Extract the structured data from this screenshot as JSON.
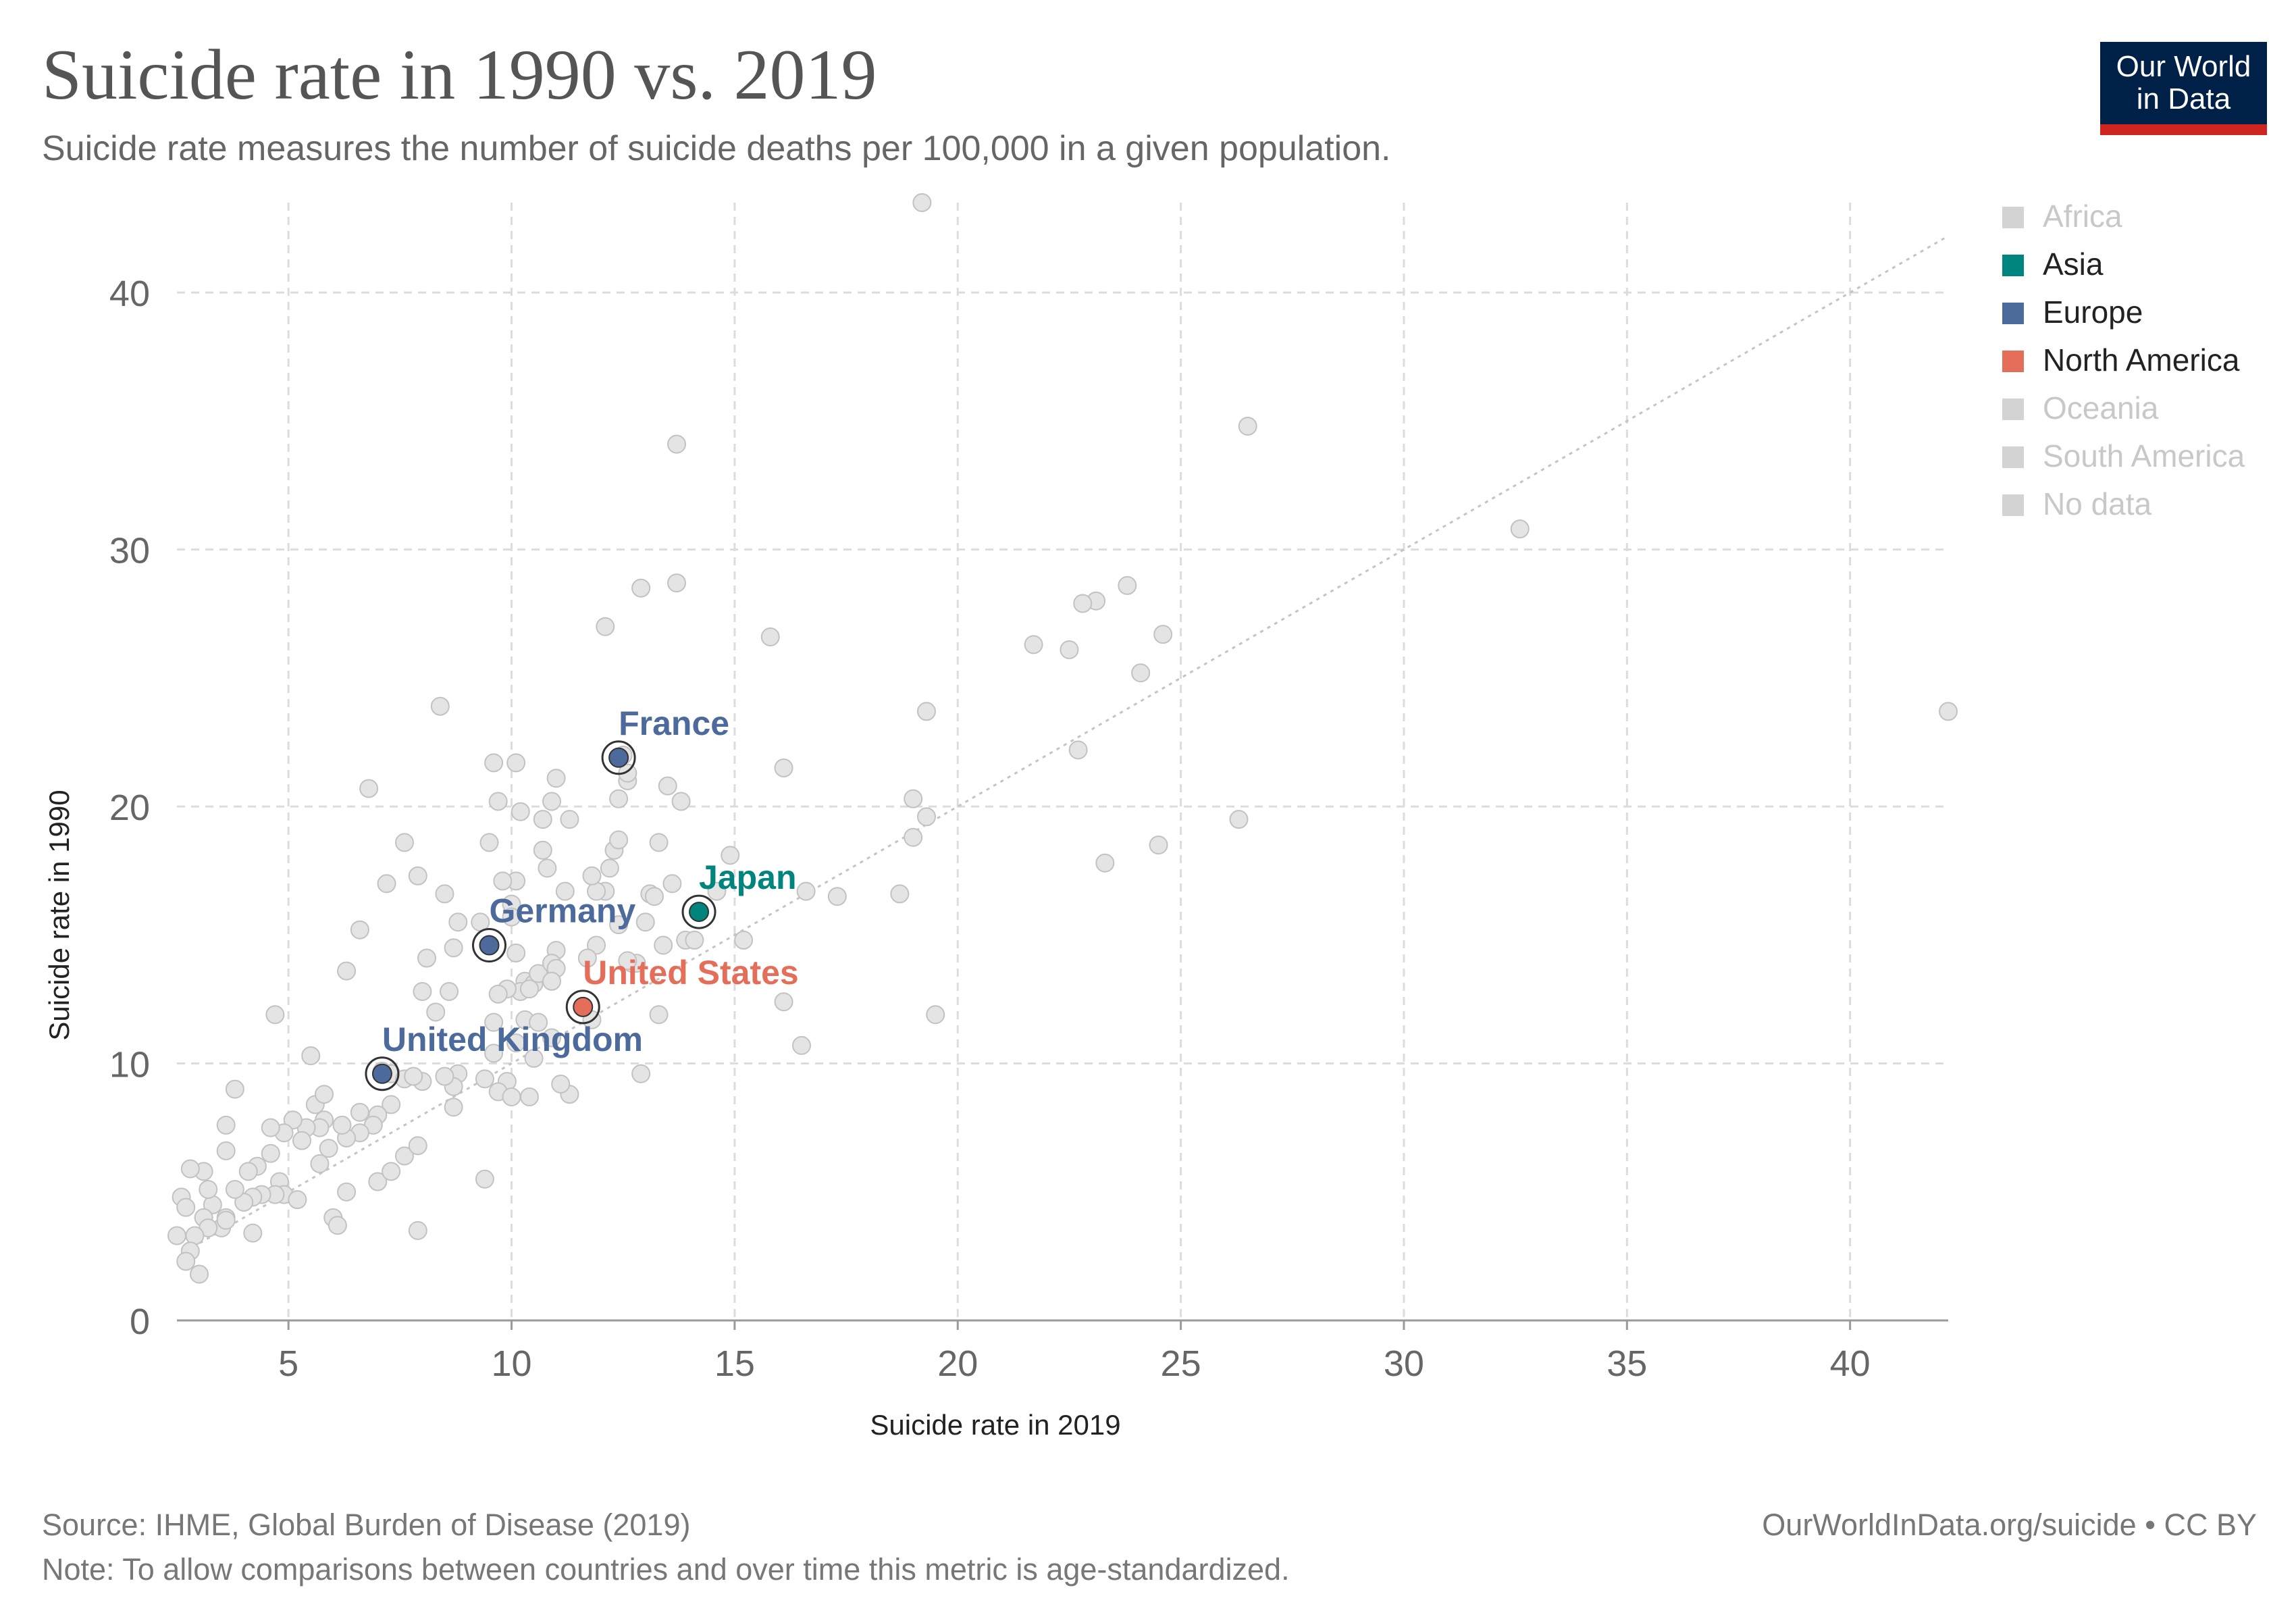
{
  "header": {
    "title": "Suicide rate in 1990 vs. 2019",
    "subtitle": "Suicide rate measures the number of suicide deaths per 100,000 in a given population."
  },
  "logo": {
    "line1": "Our World",
    "line2": "in Data"
  },
  "footer": {
    "source": "Source: IHME, Global Burden of Disease (2019)",
    "note": "Note: To allow comparisons between countries and over time this metric is age-standardized.",
    "credit": "OurWorldInData.org/suicide • CC BY"
  },
  "colors": {
    "Africa": "#d3d3d3",
    "Asia": "#00847e",
    "Europe": "#4c6a9c",
    "North America": "#e56e5a",
    "Oceania": "#d3d3d3",
    "South America": "#d3d3d3",
    "No data": "#d3d3d3",
    "background_point": "#e4e4e4"
  },
  "chart_data": {
    "type": "scatter",
    "title": "Suicide rate in 1990 vs. 2019",
    "xlabel": "Suicide rate in 2019",
    "ylabel": "Suicide rate in 1990",
    "xlim": [
      2.5,
      42.2
    ],
    "ylim": [
      0,
      43.5
    ],
    "xticks": [
      5,
      10,
      15,
      20,
      25,
      30,
      35,
      40
    ],
    "yticks": [
      0,
      10,
      20,
      30,
      40
    ],
    "grid": true,
    "reference_line": "y = x",
    "legend": {
      "position": "right",
      "entries": [
        {
          "label": "Africa",
          "active": false
        },
        {
          "label": "Asia",
          "active": true
        },
        {
          "label": "Europe",
          "active": true
        },
        {
          "label": "North America",
          "active": true
        },
        {
          "label": "Oceania",
          "active": false
        },
        {
          "label": "South America",
          "active": false
        },
        {
          "label": "No data",
          "active": false
        }
      ]
    },
    "highlighted": [
      {
        "name": "France",
        "region": "Europe",
        "x": 12.4,
        "y": 21.9
      },
      {
        "name": "Japan",
        "region": "Asia",
        "x": 14.2,
        "y": 15.9
      },
      {
        "name": "Germany",
        "region": "Europe",
        "x": 9.5,
        "y": 14.6
      },
      {
        "name": "United States",
        "region": "North America",
        "x": 11.6,
        "y": 12.2
      },
      {
        "name": "United Kingdom",
        "region": "Europe",
        "x": 7.1,
        "y": 9.6
      }
    ],
    "points": [
      [
        19.2,
        43.5
      ],
      [
        13.7,
        34.1
      ],
      [
        26.5,
        34.8
      ],
      [
        32.6,
        30.8
      ],
      [
        42.2,
        23.7
      ],
      [
        13.7,
        28.7
      ],
      [
        12.9,
        28.5
      ],
      [
        12.1,
        27.0
      ],
      [
        15.8,
        26.6
      ],
      [
        23.8,
        28.6
      ],
      [
        23.1,
        28.0
      ],
      [
        22.8,
        27.9
      ],
      [
        21.7,
        26.3
      ],
      [
        22.5,
        26.1
      ],
      [
        24.6,
        26.7
      ],
      [
        24.1,
        25.2
      ],
      [
        19.3,
        23.7
      ],
      [
        22.7,
        22.2
      ],
      [
        26.3,
        19.5
      ],
      [
        24.5,
        18.5
      ],
      [
        23.3,
        17.8
      ],
      [
        19.5,
        11.9
      ],
      [
        19.0,
        20.3
      ],
      [
        19.3,
        19.6
      ],
      [
        19.0,
        18.8
      ],
      [
        18.7,
        16.6
      ],
      [
        17.3,
        16.5
      ],
      [
        16.5,
        10.7
      ],
      [
        16.1,
        12.4
      ],
      [
        16.1,
        21.5
      ],
      [
        14.9,
        18.1
      ],
      [
        13.5,
        20.8
      ],
      [
        13.8,
        20.2
      ],
      [
        13.3,
        18.6
      ],
      [
        13.1,
        16.6
      ],
      [
        13.0,
        15.5
      ],
      [
        12.6,
        21.0
      ],
      [
        12.4,
        20.3
      ],
      [
        12.3,
        18.3
      ],
      [
        12.2,
        17.6
      ],
      [
        12.4,
        18.7
      ],
      [
        12.1,
        16.7
      ],
      [
        11.9,
        16.7
      ],
      [
        11.8,
        17.3
      ],
      [
        11.9,
        14.6
      ],
      [
        11.7,
        14.1
      ],
      [
        12.4,
        15.4
      ],
      [
        12.7,
        13.9
      ],
      [
        13.4,
        14.6
      ],
      [
        13.9,
        14.8
      ],
      [
        14.1,
        14.8
      ],
      [
        13.3,
        11.9
      ],
      [
        11.3,
        8.8
      ],
      [
        11.1,
        9.2
      ],
      [
        11.3,
        19.5
      ],
      [
        11.0,
        21.1
      ],
      [
        10.9,
        20.2
      ],
      [
        10.7,
        19.5
      ],
      [
        10.7,
        18.3
      ],
      [
        10.8,
        17.6
      ],
      [
        11.2,
        16.7
      ],
      [
        10.1,
        21.7
      ],
      [
        9.6,
        21.7
      ],
      [
        9.7,
        20.2
      ],
      [
        10.2,
        19.8
      ],
      [
        9.5,
        18.6
      ],
      [
        10.1,
        17.1
      ],
      [
        9.8,
        17.1
      ],
      [
        10.0,
        16.2
      ],
      [
        10.0,
        15.7
      ],
      [
        9.3,
        15.5
      ],
      [
        8.8,
        15.5
      ],
      [
        8.7,
        14.5
      ],
      [
        10.1,
        14.3
      ],
      [
        11.0,
        14.4
      ],
      [
        10.3,
        13.2
      ],
      [
        10.5,
        13.1
      ],
      [
        10.6,
        13.5
      ],
      [
        10.9,
        13.9
      ],
      [
        11.0,
        13.7
      ],
      [
        10.2,
        12.8
      ],
      [
        9.9,
        12.9
      ],
      [
        9.7,
        12.7
      ],
      [
        10.4,
        12.9
      ],
      [
        10.9,
        13.2
      ],
      [
        9.6,
        11.6
      ],
      [
        10.3,
        11.7
      ],
      [
        10.6,
        11.6
      ],
      [
        10.9,
        11.0
      ],
      [
        9.6,
        10.4
      ],
      [
        10.1,
        10.8
      ],
      [
        10.5,
        10.2
      ],
      [
        9.9,
        9.3
      ],
      [
        9.4,
        9.4
      ],
      [
        9.7,
        8.9
      ],
      [
        10.0,
        8.7
      ],
      [
        10.4,
        8.7
      ],
      [
        9.4,
        5.5
      ],
      [
        8.8,
        9.6
      ],
      [
        8.7,
        9.1
      ],
      [
        8.7,
        8.3
      ],
      [
        8.5,
        9.5
      ],
      [
        8.3,
        12.0
      ],
      [
        8.6,
        12.8
      ],
      [
        8.0,
        12.8
      ],
      [
        8.1,
        14.1
      ],
      [
        8.5,
        16.6
      ],
      [
        7.9,
        17.3
      ],
      [
        7.6,
        18.6
      ],
      [
        8.4,
        23.9
      ],
      [
        6.8,
        20.7
      ],
      [
        7.2,
        17.0
      ],
      [
        6.6,
        15.2
      ],
      [
        6.3,
        13.6
      ],
      [
        7.1,
        9.7
      ],
      [
        7.3,
        9.6
      ],
      [
        7.6,
        9.4
      ],
      [
        8.0,
        9.3
      ],
      [
        7.3,
        8.4
      ],
      [
        7.0,
        8.0
      ],
      [
        6.9,
        7.6
      ],
      [
        6.6,
        7.3
      ],
      [
        6.6,
        8.1
      ],
      [
        6.3,
        7.1
      ],
      [
        6.2,
        7.6
      ],
      [
        5.8,
        7.8
      ],
      [
        5.7,
        7.5
      ],
      [
        5.6,
        8.4
      ],
      [
        5.8,
        8.8
      ],
      [
        5.9,
        6.7
      ],
      [
        5.7,
        6.1
      ],
      [
        5.4,
        7.5
      ],
      [
        5.3,
        7.0
      ],
      [
        5.5,
        10.3
      ],
      [
        5.1,
        7.8
      ],
      [
        4.9,
        7.3
      ],
      [
        4.6,
        7.5
      ],
      [
        4.6,
        6.5
      ],
      [
        4.3,
        6.0
      ],
      [
        4.1,
        5.8
      ],
      [
        4.8,
        5.4
      ],
      [
        4.9,
        4.9
      ],
      [
        4.7,
        4.9
      ],
      [
        5.2,
        4.7
      ],
      [
        4.4,
        4.9
      ],
      [
        4.2,
        4.8
      ],
      [
        4.0,
        4.6
      ],
      [
        3.8,
        5.1
      ],
      [
        3.6,
        4.0
      ],
      [
        3.5,
        3.6
      ],
      [
        3.6,
        3.9
      ],
      [
        3.3,
        4.5
      ],
      [
        3.1,
        4.0
      ],
      [
        3.2,
        3.6
      ],
      [
        3.2,
        5.1
      ],
      [
        3.1,
        5.8
      ],
      [
        2.8,
        5.9
      ],
      [
        2.6,
        4.8
      ],
      [
        2.7,
        4.4
      ],
      [
        2.5,
        3.3
      ],
      [
        2.9,
        3.3
      ],
      [
        2.8,
        2.7
      ],
      [
        2.7,
        2.3
      ],
      [
        3.0,
        1.8
      ],
      [
        3.6,
        6.6
      ],
      [
        3.6,
        7.6
      ],
      [
        3.8,
        9.0
      ],
      [
        4.2,
        3.4
      ],
      [
        4.7,
        11.9
      ],
      [
        6.0,
        4.0
      ],
      [
        6.1,
        3.7
      ],
      [
        6.3,
        5.0
      ],
      [
        7.0,
        5.4
      ],
      [
        7.3,
        5.8
      ],
      [
        7.6,
        6.4
      ],
      [
        7.9,
        6.8
      ],
      [
        7.9,
        3.5
      ],
      [
        7.8,
        9.5
      ],
      [
        12.8,
        13.9
      ],
      [
        14.6,
        16.7
      ],
      [
        13.2,
        16.5
      ],
      [
        16.6,
        16.7
      ],
      [
        12.9,
        9.6
      ],
      [
        12.6,
        14.0
      ],
      [
        15.2,
        14.8
      ],
      [
        11.8,
        11.7
      ],
      [
        12.5,
        22.0
      ],
      [
        12.6,
        21.3
      ],
      [
        13.6,
        17.0
      ]
    ]
  }
}
